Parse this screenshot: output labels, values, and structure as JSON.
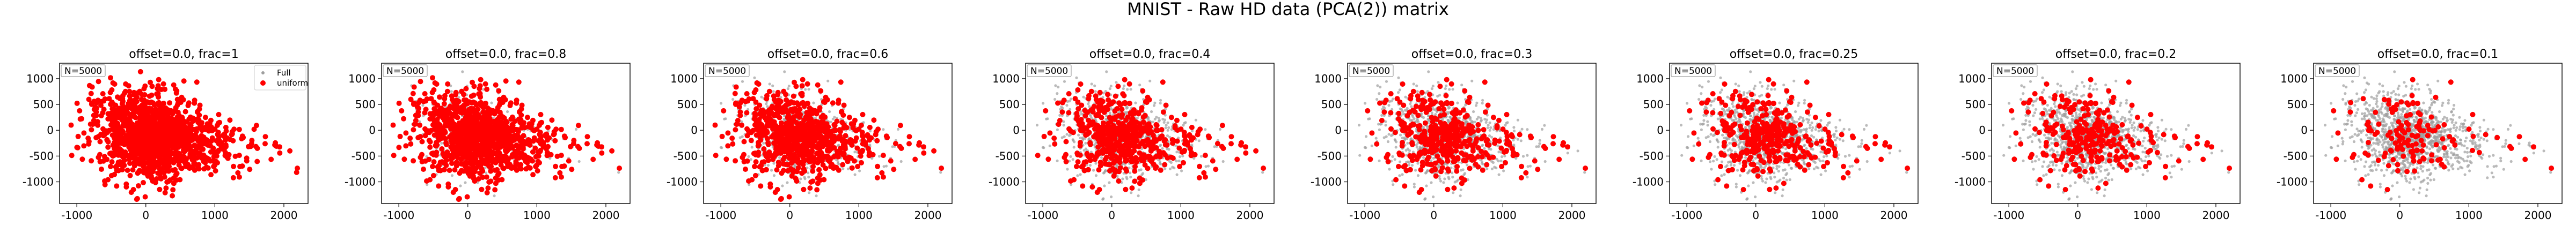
{
  "figure": {
    "title": "MNIST - Raw HD data (PCA(2)) matrix"
  },
  "chart_data": [
    {
      "type": "scatter",
      "title": "offset=0.0, frac=1",
      "frac": 1,
      "n_label": "N=5000",
      "legend": [
        "Full",
        "uniform"
      ],
      "legend_loc": "upper right",
      "series": [
        {
          "name": "Full",
          "color": "#9e9e9e"
        },
        {
          "name": "uniform",
          "color": "#ff0000"
        }
      ],
      "xlim": [
        -1250,
        2350
      ],
      "ylim": [
        -1420,
        1300
      ],
      "xticks": [
        -1000,
        0,
        1000,
        2000
      ],
      "yticks": [
        -1000,
        -500,
        0,
        500,
        1000
      ]
    },
    {
      "type": "scatter",
      "title": "offset=0.0, frac=0.8",
      "frac": 0.8,
      "n_label": "N=5000",
      "series": [
        {
          "name": "Full",
          "color": "#9e9e9e"
        },
        {
          "name": "uniform",
          "color": "#ff0000"
        }
      ],
      "xlim": [
        -1250,
        2350
      ],
      "ylim": [
        -1420,
        1300
      ],
      "xticks": [
        -1000,
        0,
        1000,
        2000
      ],
      "yticks": [
        -1000,
        -500,
        0,
        500,
        1000
      ]
    },
    {
      "type": "scatter",
      "title": "offset=0.0, frac=0.6",
      "frac": 0.6,
      "n_label": "N=5000",
      "series": [
        {
          "name": "Full",
          "color": "#9e9e9e"
        },
        {
          "name": "uniform",
          "color": "#ff0000"
        }
      ],
      "xlim": [
        -1250,
        2350
      ],
      "ylim": [
        -1420,
        1300
      ],
      "xticks": [
        -1000,
        0,
        1000,
        2000
      ],
      "yticks": [
        -1000,
        -500,
        0,
        500,
        1000
      ]
    },
    {
      "type": "scatter",
      "title": "offset=0.0, frac=0.4",
      "frac": 0.4,
      "n_label": "N=5000",
      "series": [
        {
          "name": "Full",
          "color": "#9e9e9e"
        },
        {
          "name": "uniform",
          "color": "#ff0000"
        }
      ],
      "xlim": [
        -1250,
        2350
      ],
      "ylim": [
        -1420,
        1300
      ],
      "xticks": [
        -1000,
        0,
        1000,
        2000
      ],
      "yticks": [
        -1000,
        -500,
        0,
        500,
        1000
      ]
    },
    {
      "type": "scatter",
      "title": "offset=0.0, frac=0.3",
      "frac": 0.3,
      "n_label": "N=5000",
      "series": [
        {
          "name": "Full",
          "color": "#9e9e9e"
        },
        {
          "name": "uniform",
          "color": "#ff0000"
        }
      ],
      "xlim": [
        -1250,
        2350
      ],
      "ylim": [
        -1420,
        1300
      ],
      "xticks": [
        -1000,
        0,
        1000,
        2000
      ],
      "yticks": [
        -1000,
        -500,
        0,
        500,
        1000
      ]
    },
    {
      "type": "scatter",
      "title": "offset=0.0, frac=0.25",
      "frac": 0.25,
      "n_label": "N=5000",
      "series": [
        {
          "name": "Full",
          "color": "#9e9e9e"
        },
        {
          "name": "uniform",
          "color": "#ff0000"
        }
      ],
      "xlim": [
        -1250,
        2350
      ],
      "ylim": [
        -1420,
        1300
      ],
      "xticks": [
        -1000,
        0,
        1000,
        2000
      ],
      "yticks": [
        -1000,
        -500,
        0,
        500,
        1000
      ]
    },
    {
      "type": "scatter",
      "title": "offset=0.0, frac=0.2",
      "frac": 0.2,
      "n_label": "N=5000",
      "series": [
        {
          "name": "Full",
          "color": "#9e9e9e"
        },
        {
          "name": "uniform",
          "color": "#ff0000"
        }
      ],
      "xlim": [
        -1250,
        2350
      ],
      "ylim": [
        -1420,
        1300
      ],
      "xticks": [
        -1000,
        0,
        1000,
        2000
      ],
      "yticks": [
        -1000,
        -500,
        0,
        500,
        1000
      ]
    },
    {
      "type": "scatter",
      "title": "offset=0.0, frac=0.1",
      "frac": 0.1,
      "n_label": "N=5000",
      "series": [
        {
          "name": "Full",
          "color": "#9e9e9e"
        },
        {
          "name": "uniform",
          "color": "#ff0000"
        }
      ],
      "xlim": [
        -1250,
        2350
      ],
      "ylim": [
        -1420,
        1300
      ],
      "xticks": [
        -1000,
        0,
        1000,
        2000
      ],
      "yticks": [
        -1000,
        -500,
        0,
        500,
        1000
      ]
    }
  ]
}
